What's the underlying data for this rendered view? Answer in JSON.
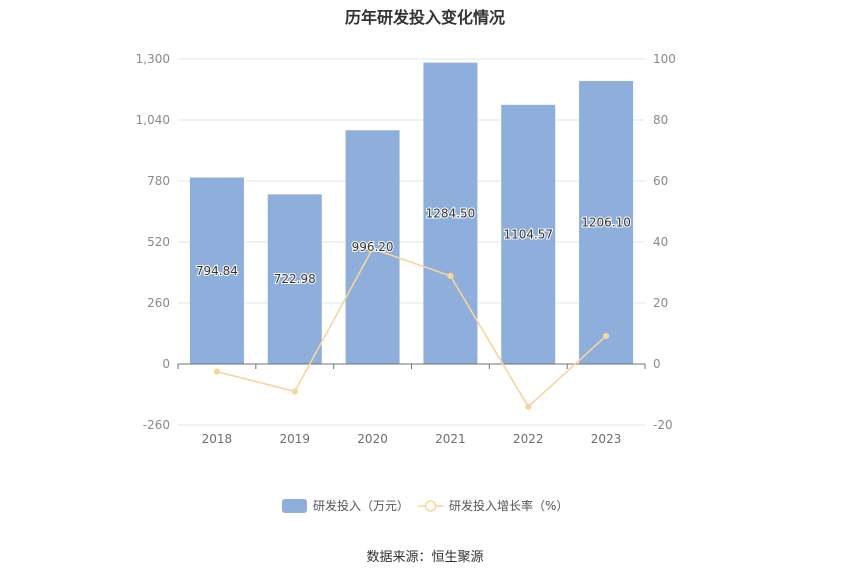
{
  "chart_data": {
    "type": "bar",
    "title": "历年研发投入变化情况",
    "categories": [
      "2018",
      "2019",
      "2020",
      "2021",
      "2022",
      "2023"
    ],
    "series": [
      {
        "name": "研发投入（万元）",
        "type": "bar",
        "axis": "left",
        "values": [
          794.84,
          722.98,
          996.2,
          1284.5,
          1104.57,
          1206.1
        ],
        "labels": [
          "794.84",
          "722.98",
          "996.20",
          "1284.50",
          "1104.57",
          "1206.10"
        ]
      },
      {
        "name": "研发投入增长率（%）",
        "type": "line",
        "axis": "right",
        "values": [
          -2.5,
          -9.0,
          37.8,
          28.9,
          -14.0,
          9.2
        ]
      }
    ],
    "y_left": {
      "ticks": [
        "1,300",
        "1,040",
        "780",
        "520",
        "260",
        "0",
        "-260"
      ],
      "ylim": [
        -260,
        1300
      ]
    },
    "y_right": {
      "ticks": [
        "100",
        "80",
        "60",
        "40",
        "20",
        "0",
        "-20"
      ],
      "ylim": [
        -20,
        100
      ]
    },
    "grid": true,
    "legend_position": "bottom-center",
    "colors": {
      "bar": "#8eaedb",
      "line": "#f7d59b"
    }
  },
  "source": "数据来源：恒生聚源"
}
